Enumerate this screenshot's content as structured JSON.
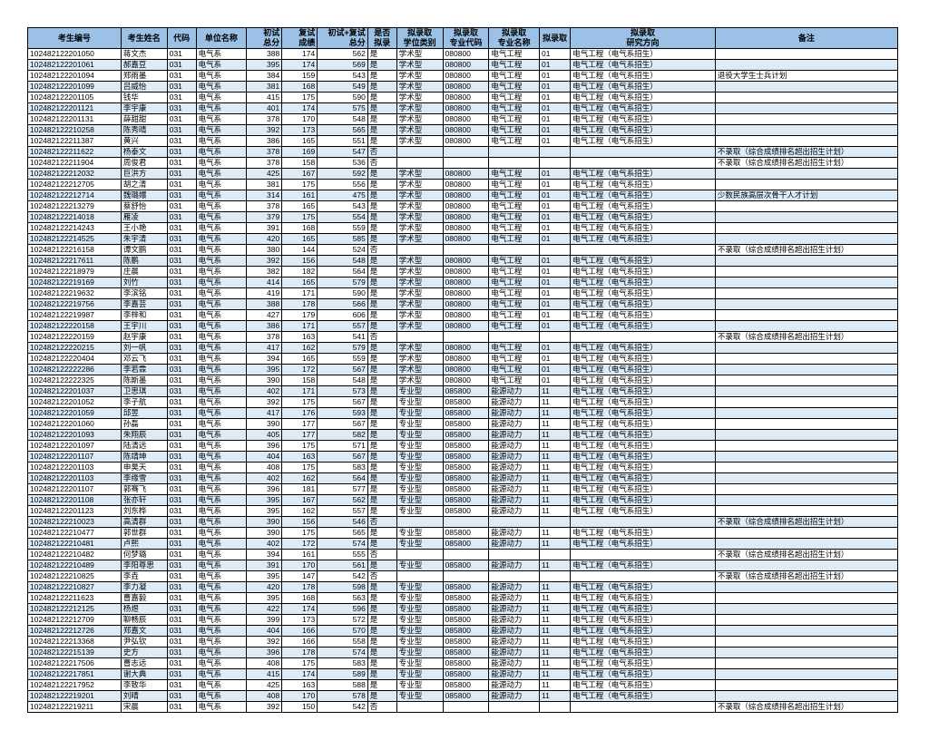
{
  "headers": [
    "考生编号",
    "考生姓名",
    "代码",
    "单位名称",
    "初试\n总分",
    "复试\n成绩",
    "初试+复试\n总分",
    "是否\n拟录",
    "拟录取\n学位类别",
    "拟录取\n专业代码",
    "拟录取\n专业名称",
    "拟录取",
    "拟录取\n研究方向",
    "备注"
  ],
  "rows": [
    [
      "102482122201050",
      "蒋文杰",
      "031",
      "电气系",
      "388",
      "174",
      "562",
      "是",
      "学术型",
      "080800",
      "电气工程",
      "01",
      "电气工程（电气系招生）",
      ""
    ],
    [
      "102482122201061",
      "郝嘉豆",
      "031",
      "电气系",
      "395",
      "174",
      "569",
      "是",
      "学术型",
      "080800",
      "电气工程",
      "01",
      "电气工程（电气系招生）",
      ""
    ],
    [
      "102482122201094",
      "郑雨墨",
      "031",
      "电气系",
      "384",
      "159",
      "543",
      "是",
      "学术型",
      "080800",
      "电气工程",
      "01",
      "电气工程（电气系招生）",
      "退役大学生士兵计划"
    ],
    [
      "102482122201099",
      "吕威怡",
      "031",
      "电气系",
      "381",
      "168",
      "549",
      "是",
      "学术型",
      "080800",
      "电气工程",
      "01",
      "电气工程（电气系招生）",
      ""
    ],
    [
      "102482122201105",
      "钱华",
      "031",
      "电气系",
      "415",
      "175",
      "590",
      "是",
      "学术型",
      "080800",
      "电气工程",
      "01",
      "电气工程（电气系招生）",
      ""
    ],
    [
      "102482122201121",
      "李宇康",
      "031",
      "电气系",
      "401",
      "174",
      "575",
      "是",
      "学术型",
      "080800",
      "电气工程",
      "01",
      "电气工程（电气系招生）",
      ""
    ],
    [
      "102482122201131",
      "薛甜甜",
      "031",
      "电气系",
      "378",
      "170",
      "548",
      "是",
      "学术型",
      "080800",
      "电气工程",
      "01",
      "电气工程（电气系招生）",
      ""
    ],
    [
      "102482122210258",
      "陈秀晴",
      "031",
      "电气系",
      "392",
      "173",
      "565",
      "是",
      "学术型",
      "080800",
      "电气工程",
      "01",
      "电气工程（电气系招生）",
      ""
    ],
    [
      "102482122211387",
      "黄兴",
      "031",
      "电气系",
      "386",
      "165",
      "551",
      "是",
      "学术型",
      "080800",
      "电气工程",
      "01",
      "电气工程（电气系招生）",
      ""
    ],
    [
      "102482122211622",
      "杨泰文",
      "031",
      "电气系",
      "378",
      "169",
      "547",
      "否",
      "",
      "",
      "",
      "",
      "",
      "不录取（综合成绩排名超出招生计划）"
    ],
    [
      "102482122211904",
      "周俊君",
      "031",
      "电气系",
      "378",
      "158",
      "536",
      "否",
      "",
      "",
      "",
      "",
      "",
      "不录取（综合成绩排名超出招生计划）"
    ],
    [
      "102482122212032",
      "巨洪方",
      "031",
      "电气系",
      "425",
      "167",
      "592",
      "是",
      "学术型",
      "080800",
      "电气工程",
      "01",
      "电气工程（电气系招生）",
      ""
    ],
    [
      "102482122212705",
      "胡之清",
      "031",
      "电气系",
      "381",
      "175",
      "556",
      "是",
      "学术型",
      "080800",
      "电气工程",
      "01",
      "电气工程（电气系招生）",
      ""
    ],
    [
      "102482122212714",
      "魏璐嬛",
      "031",
      "电气系",
      "314",
      "161",
      "475",
      "是",
      "学术型",
      "080800",
      "电气工程",
      "01",
      "电气工程（电气系招生）",
      "少数民族高层次骨干人才计划"
    ],
    [
      "102482122213279",
      "蔡舒怡",
      "031",
      "电气系",
      "378",
      "165",
      "543",
      "是",
      "学术型",
      "080800",
      "电气工程",
      "01",
      "电气工程（电气系招生）",
      ""
    ],
    [
      "102482122214018",
      "雁凌",
      "031",
      "电气系",
      "379",
      "175",
      "554",
      "是",
      "学术型",
      "080800",
      "电气工程",
      "01",
      "电气工程（电气系招生）",
      ""
    ],
    [
      "102482122214243",
      "王小艳",
      "031",
      "电气系",
      "391",
      "168",
      "559",
      "是",
      "学术型",
      "080800",
      "电气工程",
      "01",
      "电气工程（电气系招生）",
      ""
    ],
    [
      "102482122214525",
      "朱宇清",
      "031",
      "电气系",
      "420",
      "165",
      "585",
      "是",
      "学术型",
      "080800",
      "电气工程",
      "01",
      "电气工程（电气系招生）",
      ""
    ],
    [
      "102482122216158",
      "谭文鹏",
      "031",
      "电气系",
      "380",
      "144",
      "524",
      "否",
      "",
      "",
      "",
      "",
      "",
      "不录取（综合成绩排名超出招生计划）"
    ],
    [
      "102482122217611",
      "陈鹏",
      "031",
      "电气系",
      "392",
      "156",
      "548",
      "是",
      "学术型",
      "080800",
      "电气工程",
      "01",
      "电气工程（电气系招生）",
      ""
    ],
    [
      "102482122218979",
      "庄晨",
      "031",
      "电气系",
      "382",
      "182",
      "564",
      "是",
      "学术型",
      "080800",
      "电气工程",
      "01",
      "电气工程（电气系招生）",
      ""
    ],
    [
      "102482122219169",
      "刘竹",
      "031",
      "电气系",
      "414",
      "165",
      "579",
      "是",
      "学术型",
      "080800",
      "电气工程",
      "01",
      "电气工程（电气系招生）",
      ""
    ],
    [
      "102482122219632",
      "李滨铭",
      "031",
      "电气系",
      "419",
      "171",
      "590",
      "是",
      "学术型",
      "080800",
      "电气工程",
      "01",
      "电气工程（电气系招生）",
      ""
    ],
    [
      "102482122219756",
      "李嘉芸",
      "031",
      "电气系",
      "388",
      "178",
      "566",
      "是",
      "学术型",
      "080800",
      "电气工程",
      "01",
      "电气工程（电气系招生）",
      ""
    ],
    [
      "102482122219987",
      "李梓和",
      "031",
      "电气系",
      "427",
      "179",
      "606",
      "是",
      "学术型",
      "080800",
      "电气工程",
      "01",
      "电气工程（电气系招生）",
      ""
    ],
    [
      "102482122220158",
      "王宇川",
      "031",
      "电气系",
      "386",
      "171",
      "557",
      "是",
      "学术型",
      "080800",
      "电气工程",
      "01",
      "电气工程（电气系招生）",
      ""
    ],
    [
      "102482122220159",
      "赵宇康",
      "031",
      "电气系",
      "378",
      "163",
      "541",
      "否",
      "",
      "",
      "",
      "",
      "",
      "不录取（综合成绩排名超出招生计划）"
    ],
    [
      "102482122220215",
      "刘一帆",
      "031",
      "电气系",
      "417",
      "162",
      "579",
      "是",
      "学术型",
      "080800",
      "电气工程",
      "01",
      "电气工程（电气系招生）",
      ""
    ],
    [
      "102482122220404",
      "邓云飞",
      "031",
      "电气系",
      "394",
      "165",
      "559",
      "是",
      "学术型",
      "080800",
      "电气工程",
      "01",
      "电气工程（电气系招生）",
      ""
    ],
    [
      "102482122222286",
      "李若霖",
      "031",
      "电气系",
      "395",
      "172",
      "567",
      "是",
      "学术型",
      "080800",
      "电气工程",
      "01",
      "电气工程（电气系招生）",
      ""
    ],
    [
      "102482122222325",
      "陈斯墨",
      "031",
      "电气系",
      "390",
      "158",
      "548",
      "是",
      "学术型",
      "080800",
      "电气工程",
      "01",
      "电气工程（电气系招生）",
      ""
    ],
    [
      "102482122201037",
      "卫思琪",
      "031",
      "电气系",
      "402",
      "171",
      "573",
      "是",
      "专业型",
      "085800",
      "能源动力",
      "11",
      "电气工程（电气系招生）",
      ""
    ],
    [
      "102482122201052",
      "李子航",
      "031",
      "电气系",
      "392",
      "175",
      "567",
      "是",
      "专业型",
      "085800",
      "能源动力",
      "11",
      "电气工程（电气系招生）",
      ""
    ],
    [
      "102482122201059",
      "邱昱",
      "031",
      "电气系",
      "417",
      "176",
      "593",
      "是",
      "专业型",
      "085800",
      "能源动力",
      "11",
      "电气工程（电气系招生）",
      ""
    ],
    [
      "102482122201060",
      "孙磊",
      "031",
      "电气系",
      "390",
      "177",
      "567",
      "是",
      "专业型",
      "085800",
      "能源动力",
      "11",
      "电气工程（电气系招生）",
      ""
    ],
    [
      "102482122201093",
      "朱翔辰",
      "031",
      "电气系",
      "405",
      "177",
      "582",
      "是",
      "专业型",
      "085800",
      "能源动力",
      "11",
      "电气工程（电气系招生）",
      ""
    ],
    [
      "102482122201097",
      "陆清远",
      "031",
      "电气系",
      "396",
      "175",
      "571",
      "是",
      "专业型",
      "085800",
      "能源动力",
      "11",
      "电气工程（电气系招生）",
      ""
    ],
    [
      "102482122201107",
      "陈靖坤",
      "031",
      "电气系",
      "404",
      "163",
      "567",
      "是",
      "专业型",
      "085800",
      "能源动力",
      "11",
      "电气工程（电气系招生）",
      ""
    ],
    [
      "102482122201103",
      "申昊天",
      "031",
      "电气系",
      "408",
      "175",
      "583",
      "是",
      "专业型",
      "085800",
      "能源动力",
      "11",
      "电气工程（电气系招生）",
      ""
    ],
    [
      "102482122201103",
      "李缘雪",
      "031",
      "电气系",
      "402",
      "162",
      "564",
      "是",
      "专业型",
      "085800",
      "能源动力",
      "11",
      "电气工程（电气系招生）",
      ""
    ],
    [
      "102482122201107",
      "郭骞飞",
      "031",
      "电气系",
      "396",
      "181",
      "577",
      "是",
      "专业型",
      "085800",
      "能源动力",
      "11",
      "电气工程（电气系招生）",
      ""
    ],
    [
      "102482122201108",
      "张亦轩",
      "031",
      "电气系",
      "395",
      "167",
      "562",
      "是",
      "专业型",
      "085800",
      "能源动力",
      "11",
      "电气工程（电气系招生）",
      ""
    ],
    [
      "102482122201123",
      "刘东桦",
      "031",
      "电气系",
      "395",
      "162",
      "557",
      "是",
      "专业型",
      "085800",
      "能源动力",
      "11",
      "电气工程（电气系招生）",
      ""
    ],
    [
      "102482122210023",
      "高清群",
      "031",
      "电气系",
      "390",
      "156",
      "546",
      "否",
      "",
      "",
      "",
      "",
      "",
      "不录取（综合成绩排名超出招生计划）"
    ],
    [
      "102482122210477",
      "郭世群",
      "031",
      "电气系",
      "390",
      "175",
      "565",
      "是",
      "专业型",
      "085800",
      "能源动力",
      "11",
      "电气工程（电气系招生）",
      ""
    ],
    [
      "102482122210481",
      "卢熙",
      "031",
      "电气系",
      "402",
      "172",
      "574",
      "是",
      "专业型",
      "085800",
      "能源动力",
      "11",
      "电气工程（电气系招生）",
      ""
    ],
    [
      "102482122210482",
      "何梦璐",
      "031",
      "电气系",
      "394",
      "161",
      "555",
      "否",
      "",
      "",
      "",
      "",
      "",
      "不录取（综合成绩排名超出招生计划）"
    ],
    [
      "102482122210489",
      "李阳尊思",
      "031",
      "电气系",
      "391",
      "170",
      "561",
      "是",
      "专业型",
      "085800",
      "能源动力",
      "11",
      "电气工程（电气系招生）",
      ""
    ],
    [
      "102482122210825",
      "李垚",
      "031",
      "电气系",
      "395",
      "147",
      "542",
      "否",
      "",
      "",
      "",
      "",
      "",
      "不录取（综合成绩排名超出招生计划）"
    ],
    [
      "102482122210827",
      "李力凝",
      "031",
      "电气系",
      "420",
      "178",
      "598",
      "是",
      "专业型",
      "085800",
      "能源动力",
      "11",
      "电气工程（电气系招生）",
      ""
    ],
    [
      "102482122211623",
      "曹嘉毅",
      "031",
      "电气系",
      "395",
      "168",
      "563",
      "是",
      "专业型",
      "085800",
      "能源动力",
      "11",
      "电气工程（电气系招生）",
      ""
    ],
    [
      "102482122212125",
      "杨煜",
      "031",
      "电气系",
      "422",
      "174",
      "596",
      "是",
      "专业型",
      "085800",
      "能源动力",
      "11",
      "电气工程（电气系招生）",
      ""
    ],
    [
      "102482122212709",
      "聊畅辰",
      "031",
      "电气系",
      "399",
      "173",
      "572",
      "是",
      "专业型",
      "085800",
      "能源动力",
      "11",
      "电气工程（电气系招生）",
      ""
    ],
    [
      "102482122212726",
      "郑嘉文",
      "031",
      "电气系",
      "404",
      "166",
      "570",
      "是",
      "专业型",
      "085800",
      "能源动力",
      "11",
      "电气工程（电气系招生）",
      ""
    ],
    [
      "102482122213368",
      "尹弘钦",
      "031",
      "电气系",
      "392",
      "166",
      "558",
      "是",
      "专业型",
      "085800",
      "能源动力",
      "11",
      "电气工程（电气系招生）",
      ""
    ],
    [
      "102482122215139",
      "史方",
      "031",
      "电气系",
      "396",
      "178",
      "574",
      "是",
      "专业型",
      "085800",
      "能源动力",
      "11",
      "电气工程（电气系招生）",
      ""
    ],
    [
      "102482122217506",
      "曹志远",
      "031",
      "电气系",
      "408",
      "175",
      "583",
      "是",
      "专业型",
      "085800",
      "能源动力",
      "11",
      "电气工程（电气系招生）",
      ""
    ],
    [
      "102482122217851",
      "谢大典",
      "031",
      "电气系",
      "415",
      "174",
      "589",
      "是",
      "专业型",
      "085800",
      "能源动力",
      "11",
      "电气工程（电气系招生）",
      ""
    ],
    [
      "102482122217952",
      "李致华",
      "031",
      "电气系",
      "425",
      "163",
      "588",
      "是",
      "专业型",
      "085800",
      "能源动力",
      "11",
      "电气工程（电气系招生）",
      ""
    ],
    [
      "102482122219201",
      "刘晴",
      "031",
      "电气系",
      "408",
      "170",
      "578",
      "是",
      "专业型",
      "085800",
      "能源动力",
      "11",
      "电气工程（电气系招生）",
      ""
    ],
    [
      "102482122219211",
      "宋晨",
      "031",
      "电气系",
      "392",
      "150",
      "542",
      "否",
      "",
      "",
      "",
      "",
      "",
      "不录取（综合成绩排名超出招生计划）"
    ]
  ]
}
